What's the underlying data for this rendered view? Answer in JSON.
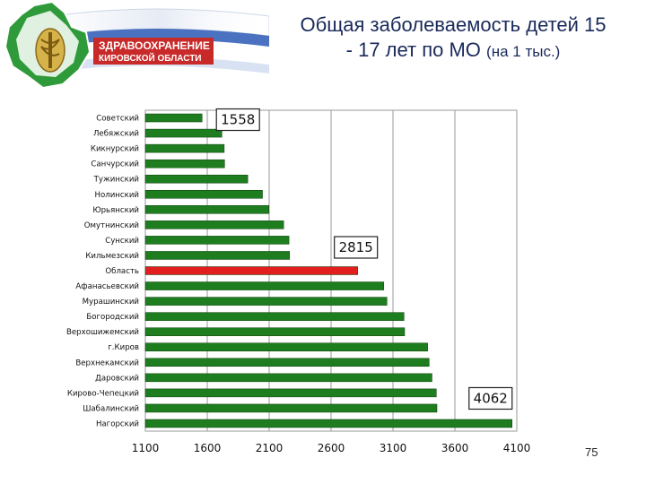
{
  "header": {
    "logo_line1": "ЗДРАВООХРАНЕНИЕ",
    "logo_line2": "КИРОВСКОЙ ОБЛАСТИ",
    "title_line1": "Общая заболеваемость детей  15",
    "title_line2": "- 17 лет  по МО",
    "title_unit": "(на 1 тыс.)"
  },
  "page_number": "75",
  "colors": {
    "bar": "#1e7d1e",
    "highlight": "#e31e1e",
    "title": "#1a2a5a"
  },
  "chart_data": {
    "type": "bar",
    "orientation": "horizontal",
    "categories": [
      "Советский",
      "Лебяжский",
      "Кикнурский",
      "Санчурский",
      "Тужинский",
      "Нолинский",
      "Юрьянский",
      "Омутнинский",
      "Сунский",
      "Кильмезский",
      "Область",
      "Афанасьевский",
      "Мурашинский",
      "Богородский",
      "Верхошижемский",
      "г.Киров",
      "Верхнекамский",
      "Даровский",
      "Кирово-Чепецкий",
      "Шабалинский",
      "Нагорский"
    ],
    "values": [
      1558,
      1718,
      1737,
      1740,
      1927,
      2046,
      2098,
      2217,
      2260,
      2265,
      2815,
      3026,
      3051,
      3189,
      3194,
      3380,
      3392,
      3415,
      3450,
      3455,
      4062
    ],
    "highlight_category": "Область",
    "xlim": [
      1100,
      4100
    ],
    "xticks": [
      1100,
      1600,
      2100,
      2600,
      3100,
      3600,
      4100
    ],
    "callouts": [
      {
        "label": "1558",
        "category": "Советский"
      },
      {
        "label": "2815",
        "category": "Область"
      },
      {
        "label": "4062",
        "category": "Нагорский"
      }
    ],
    "title": "",
    "xlabel": "",
    "ylabel": ""
  }
}
